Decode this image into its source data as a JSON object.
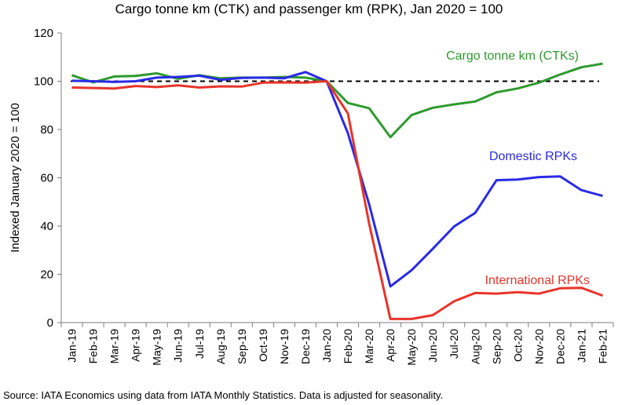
{
  "chart_data": {
    "type": "line",
    "title": "Cargo tonne km (CTK) and passenger km (RPK), Jan 2020 = 100",
    "ylabel": "Indexed January 2020 = 100",
    "xlabel": "",
    "ylim": [
      0,
      120
    ],
    "yticks": [
      0,
      20,
      40,
      60,
      80,
      100,
      120
    ],
    "grid": false,
    "reference_line": {
      "value": 100,
      "style": "dashed",
      "color": "#000000"
    },
    "categories": [
      "Jan-19",
      "Feb-19",
      "Mar-19",
      "Apr-19",
      "May-19",
      "Jun-19",
      "Jul-19",
      "Aug-19",
      "Sep-19",
      "Oct-19",
      "Nov-19",
      "Dec-19",
      "Jan-20",
      "Feb-20",
      "Mar-20",
      "Apr-20",
      "May-20",
      "Jun-20",
      "Jul-20",
      "Aug-20",
      "Sep-20",
      "Oct-20",
      "Nov-20",
      "Dec-20",
      "Jan-21",
      "Feb-21"
    ],
    "series": [
      {
        "name": "Cargo tonne km (CTKs)",
        "color": "#2e9a2e",
        "values": [
          102.5,
          99.5,
          102.0,
          102.2,
          103.3,
          101.0,
          102.5,
          101.2,
          101.5,
          101.5,
          101.8,
          101.5,
          100.0,
          91.0,
          88.8,
          76.8,
          86.0,
          89.0,
          90.4,
          91.6,
          95.4,
          97.0,
          99.4,
          102.8,
          105.8,
          107.3
        ]
      },
      {
        "name": "Domestic RPKs",
        "color": "#2a2ae6",
        "values": [
          100.2,
          100.0,
          99.7,
          100.0,
          101.5,
          101.8,
          102.3,
          100.6,
          101.4,
          101.5,
          101.2,
          103.8,
          100.0,
          78.5,
          49.0,
          15.0,
          21.7,
          30.6,
          39.8,
          45.5,
          59.0,
          59.3,
          60.3,
          60.6,
          54.9,
          52.5
        ]
      },
      {
        "name": "International RPKs",
        "color": "#e8342a",
        "values": [
          97.4,
          97.2,
          97.0,
          98.0,
          97.6,
          98.3,
          97.4,
          97.9,
          97.8,
          99.4,
          99.5,
          99.4,
          100.0,
          86.7,
          41.0,
          1.5,
          1.5,
          3.1,
          8.8,
          12.3,
          12.0,
          12.6,
          12.0,
          14.2,
          14.4,
          11.2
        ]
      }
    ],
    "annotations": [
      {
        "text": "Cargo tonne km (CTKs)",
        "color": "#2e9a2e"
      },
      {
        "text": "Domestic RPKs",
        "color": "#2a2ae6"
      },
      {
        "text": "International RPKs",
        "color": "#e8342a"
      }
    ]
  },
  "footer": {
    "source": "Source: IATA Economics using data from IATA Monthly Statistics. Data is adjusted for seasonality."
  }
}
